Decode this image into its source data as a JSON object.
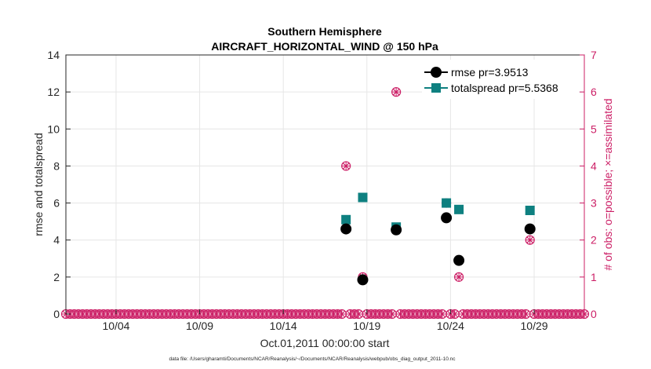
{
  "colors": {
    "rmse": "#000000",
    "totalspread": "#0e8080",
    "obs": "#cc1f66",
    "axis": "#262626"
  },
  "chart_data": {
    "type": "scatter",
    "title": "Southern Hemisphere",
    "subtitle": "AIRCRAFT_HORIZONTAL_WIND @ 150 hPa",
    "xlabel": "Oct.01,2011 00:00:00 start",
    "ylabel": "rmse and totalspread",
    "y2label": "# of obs: o=possible; ×=assimilated",
    "footnote": "data file: /Users/gharamti/Documents/NCAR/Reanalysis/~/Documents/NCAR/Reanalysis/webpub/obs_diag_output_2011-10.nc",
    "xlim": [
      0,
      31
    ],
    "ylim": [
      0,
      14
    ],
    "y2lim": [
      0,
      7
    ],
    "xticks": [
      3,
      8,
      13,
      18,
      23,
      28
    ],
    "xtick_labels": [
      "10/04",
      "10/09",
      "10/14",
      "10/19",
      "10/24",
      "10/29"
    ],
    "yticks": [
      0,
      2,
      4,
      6,
      8,
      10,
      12,
      14
    ],
    "ytick_labels": [
      "0",
      "2",
      "4",
      "6",
      "8",
      "10",
      "12",
      "14"
    ],
    "y2ticks": [
      0,
      1,
      2,
      3,
      4,
      5,
      6,
      7
    ],
    "y2tick_labels": [
      "0",
      "1",
      "2",
      "3",
      "4",
      "5",
      "6",
      "7"
    ],
    "grid": true,
    "legend_position": "top-right",
    "series": [
      {
        "name": "rmse pr=3.9513",
        "marker": "circle",
        "axis": "left",
        "x": [
          16.75,
          17.75,
          19.75,
          22.75,
          23.5,
          27.75
        ],
        "y": [
          4.6,
          1.85,
          4.55,
          5.2,
          2.9,
          4.6
        ]
      },
      {
        "name": "totalspread pr=5.5368",
        "marker": "square",
        "axis": "left",
        "x": [
          16.75,
          17.75,
          19.75,
          22.75,
          23.5,
          27.75
        ],
        "y": [
          5.1,
          6.3,
          4.7,
          6.0,
          5.65,
          5.6
        ]
      },
      {
        "name": "obs",
        "marker": "circle-x",
        "axis": "right",
        "x": [
          16.75,
          17.75,
          19.75,
          22.75,
          23.5,
          27.75
        ],
        "y": [
          4,
          1,
          6,
          3,
          1,
          2
        ],
        "zero_count_step": 0.25
      }
    ]
  }
}
